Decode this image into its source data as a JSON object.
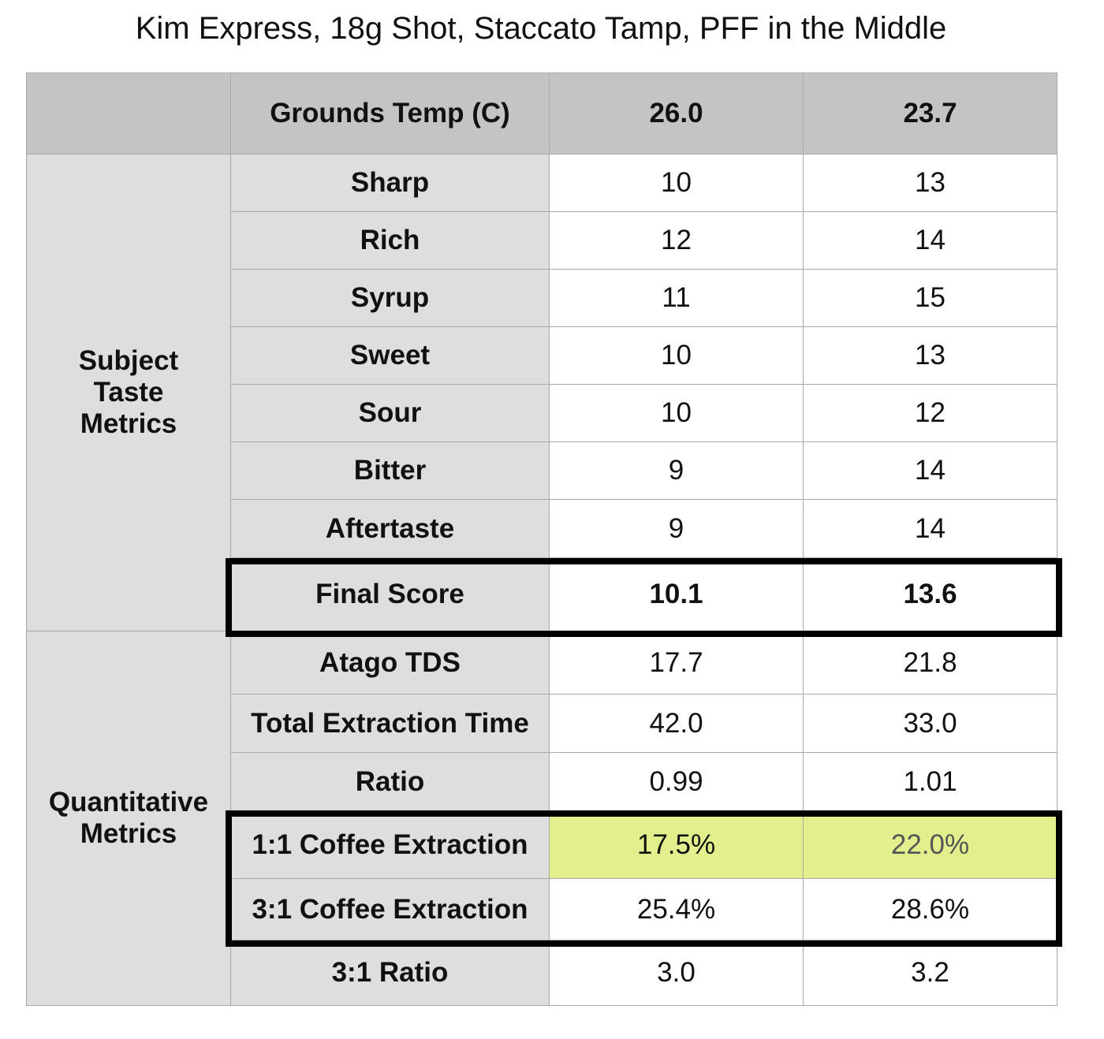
{
  "chart_data": {
    "type": "table",
    "title": "Kim Express, 18g Shot, Staccato Tamp, PFF in the Middle",
    "header": {
      "label": "Grounds Temp (C)",
      "columns": [
        "26.0",
        "23.7"
      ]
    },
    "groups": [
      {
        "name": "Subject Taste Metrics",
        "name_lines": [
          "Subject",
          "Taste",
          "Metrics"
        ],
        "rows": [
          {
            "label": "Sharp",
            "values": [
              "10",
              "13"
            ]
          },
          {
            "label": "Rich",
            "values": [
              "12",
              "14"
            ]
          },
          {
            "label": "Syrup",
            "values": [
              "11",
              "15"
            ]
          },
          {
            "label": "Sweet",
            "values": [
              "10",
              "13"
            ]
          },
          {
            "label": "Sour",
            "values": [
              "10",
              "12"
            ]
          },
          {
            "label": "Bitter",
            "values": [
              "9",
              "14"
            ]
          },
          {
            "label": "Aftertaste",
            "values": [
              "9",
              "14"
            ]
          },
          {
            "label": "Final Score",
            "values": [
              "10.1",
              "13.6"
            ]
          }
        ]
      },
      {
        "name": "Quantitative Metrics",
        "name_lines": [
          "Quantitative",
          "Metrics"
        ],
        "rows": [
          {
            "label": "Atago TDS",
            "values": [
              "17.7",
              "21.8"
            ]
          },
          {
            "label": "Total Extraction Time",
            "values": [
              "42.0",
              "33.0"
            ]
          },
          {
            "label": "Ratio",
            "values": [
              "0.99",
              "1.01"
            ]
          },
          {
            "label": "1:1 Coffee Extraction",
            "values": [
              "17.5%",
              "22.0%"
            ]
          },
          {
            "label": "3:1 Coffee Extraction",
            "values": [
              "25.4%",
              "28.6%"
            ]
          },
          {
            "label": "3:1 Ratio",
            "values": [
              "3.0",
              "3.2"
            ]
          }
        ]
      }
    ],
    "colors": {
      "header_bg": "#c4c4c4",
      "label_bg": "#dedede",
      "highlight_bg": "#e3ef8c"
    }
  }
}
